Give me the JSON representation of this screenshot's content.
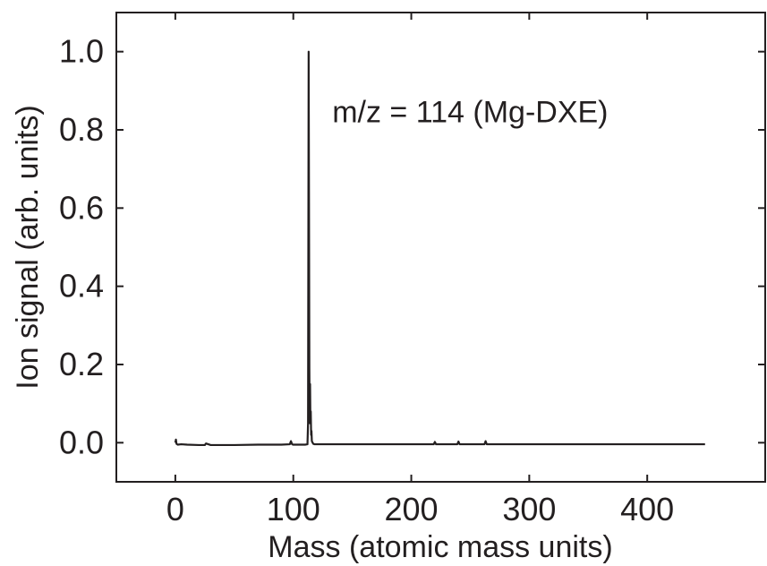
{
  "chart_data": {
    "type": "line",
    "title": "",
    "xlabel": "Mass (atomic mass units)",
    "ylabel": "Ion signal (arb. units)",
    "xlim": [
      -50,
      500
    ],
    "ylim": [
      -0.1,
      1.1
    ],
    "x_ticks": [
      0,
      100,
      200,
      300,
      400
    ],
    "x_tick_labels": [
      "0",
      "100",
      "200",
      "300",
      "400"
    ],
    "y_ticks": [
      0.0,
      0.2,
      0.4,
      0.6,
      0.8,
      1.0
    ],
    "y_tick_labels": [
      "0.0",
      "0.2",
      "0.4",
      "0.6",
      "0.8",
      "1.0"
    ],
    "grid": false,
    "annotations": [
      {
        "text": "m/z = 114 (Mg-DXE)",
        "x": 133,
        "y": 0.82
      }
    ],
    "series": [
      {
        "color": "#231f20",
        "x": [
          0,
          0.5,
          1,
          2,
          5,
          10,
          20,
          25,
          26,
          30,
          50,
          70,
          90,
          97,
          98,
          99,
          100,
          110,
          112,
          112.5,
          113,
          113.3,
          113.6,
          113.9,
          114.2,
          114.5,
          114.8,
          115.1,
          115.4,
          115.7,
          116,
          117,
          118,
          120,
          130,
          145,
          150,
          200,
          219,
          220,
          221,
          239,
          240,
          241,
          262,
          263,
          264,
          300,
          340,
          400,
          449
        ],
        "y": [
          0.0,
          0.008,
          -0.003,
          -0.005,
          -0.004,
          -0.005,
          -0.006,
          -0.006,
          -0.002,
          -0.006,
          -0.006,
          -0.005,
          -0.005,
          -0.004,
          0.004,
          -0.004,
          -0.005,
          -0.005,
          -0.004,
          0.05,
          1.0,
          0.6,
          0.19,
          0.05,
          0.15,
          0.05,
          0.08,
          0.02,
          0.03,
          0.005,
          0.002,
          -0.003,
          -0.004,
          -0.004,
          -0.004,
          -0.004,
          -0.004,
          -0.004,
          -0.004,
          0.002,
          -0.004,
          -0.004,
          0.003,
          -0.004,
          -0.004,
          0.004,
          -0.004,
          -0.004,
          -0.004,
          -0.004,
          -0.004
        ]
      }
    ]
  }
}
